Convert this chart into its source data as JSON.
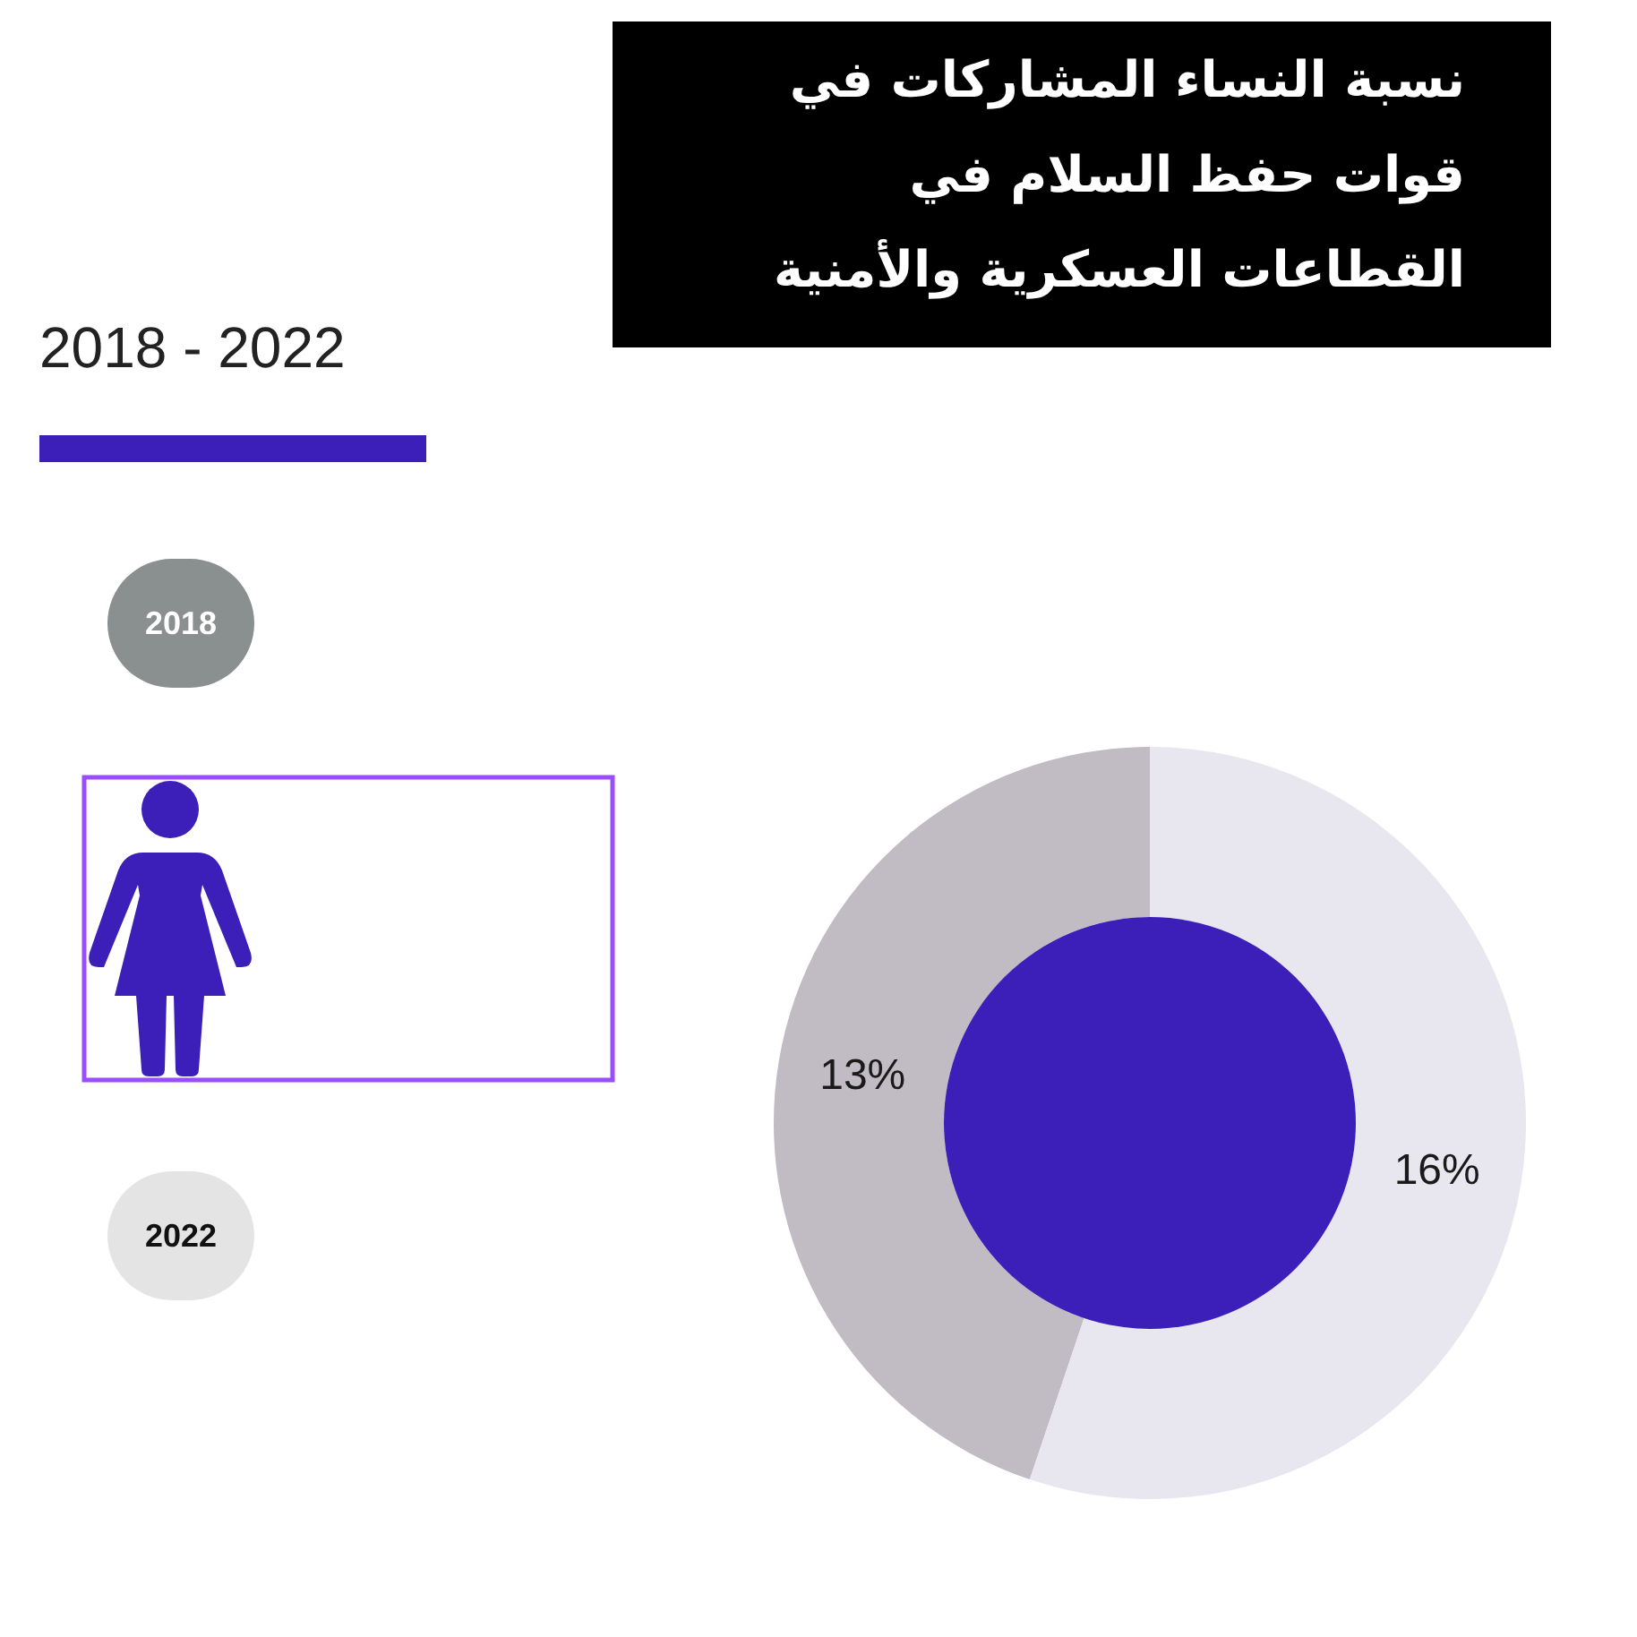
{
  "chart_data": {
    "type": "donut",
    "title": "نسبة النساء المشاركات في قوات حفظ السلام في القطاعات العسكرية والأمنية",
    "subtitle": "2018 - 2022",
    "categories": [
      null,
      null
    ],
    "values": [
      13,
      16
    ],
    "colors": [
      "#c1bcc4",
      "#e8e6ee"
    ],
    "value_labels": [
      "13%",
      "16%"
    ],
    "annotations": [
      "2018",
      "2022"
    ]
  }
}
